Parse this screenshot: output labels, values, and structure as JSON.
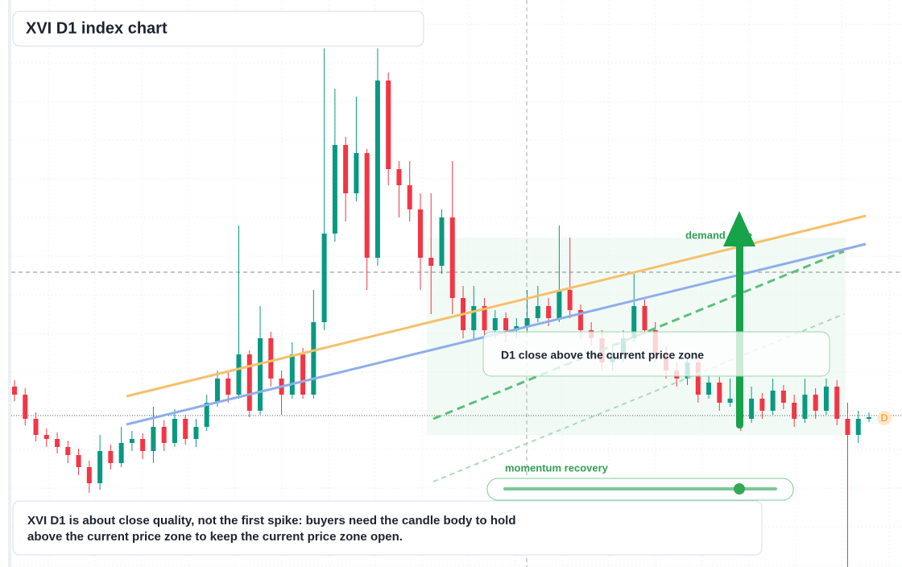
{
  "chart_data": {
    "type": "candlestick",
    "title": "XVI D1 index chart",
    "ylim": [
      0,
      704
    ],
    "up_color": "#089981",
    "down_color": "#f23645",
    "candles": [
      [
        224,
        232,
        206,
        214
      ],
      [
        214,
        222,
        176,
        184
      ],
      [
        184,
        192,
        156,
        164
      ],
      [
        164,
        172,
        149,
        159
      ],
      [
        159,
        167,
        141,
        149
      ],
      [
        149,
        157,
        129,
        139
      ],
      [
        139,
        147,
        114,
        124
      ],
      [
        124,
        132,
        92,
        104
      ],
      [
        104,
        164,
        96,
        144
      ],
      [
        144,
        152,
        121,
        129
      ],
      [
        129,
        174,
        124,
        154
      ],
      [
        154,
        169,
        144,
        159
      ],
      [
        159,
        166,
        134,
        144
      ],
      [
        144,
        199,
        129,
        174
      ],
      [
        174,
        182,
        144,
        154
      ],
      [
        154,
        196,
        149,
        184
      ],
      [
        184,
        189,
        152,
        159
      ],
      [
        159,
        184,
        149,
        174
      ],
      [
        174,
        214,
        169,
        204
      ],
      [
        204,
        244,
        199,
        234
      ],
      [
        234,
        242,
        204,
        214
      ],
      [
        214,
        424,
        209,
        264
      ],
      [
        264,
        269,
        186,
        194
      ],
      [
        194,
        324,
        189,
        284
      ],
      [
        284,
        292,
        224,
        234
      ],
      [
        234,
        244,
        189,
        214
      ],
      [
        214,
        279,
        209,
        264
      ],
      [
        264,
        272,
        209,
        214
      ],
      [
        214,
        344,
        209,
        304
      ],
      [
        304,
        644,
        294,
        414
      ],
      [
        414,
        594,
        404,
        524
      ],
      [
        524,
        534,
        429,
        464
      ],
      [
        464,
        584,
        454,
        514
      ],
      [
        514,
        519,
        344,
        384
      ],
      [
        384,
        644,
        374,
        604
      ],
      [
        604,
        614,
        474,
        494
      ],
      [
        494,
        504,
        434,
        474
      ],
      [
        474,
        504,
        429,
        444
      ],
      [
        444,
        464,
        344,
        384
      ],
      [
        384,
        464,
        314,
        374
      ],
      [
        374,
        444,
        364,
        434
      ],
      [
        434,
        504,
        314,
        334
      ],
      [
        334,
        349,
        284,
        294
      ],
      [
        294,
        349,
        284,
        324
      ],
      [
        324,
        334,
        284,
        294
      ],
      [
        294,
        319,
        284,
        309
      ],
      [
        309,
        316,
        279,
        294
      ],
      [
        294,
        309,
        284,
        299
      ],
      [
        299,
        344,
        289,
        309
      ],
      [
        309,
        349,
        304,
        324
      ],
      [
        324,
        334,
        299,
        309
      ],
      [
        309,
        424,
        304,
        344
      ],
      [
        344,
        409,
        309,
        319
      ],
      [
        319,
        326,
        284,
        294
      ],
      [
        294,
        304,
        274,
        284
      ],
      [
        284,
        294,
        244,
        254
      ],
      [
        254,
        274,
        244,
        264
      ],
      [
        264,
        294,
        254,
        284
      ],
      [
        284,
        364,
        279,
        324
      ],
      [
        324,
        332,
        289,
        294
      ],
      [
        294,
        304,
        254,
        264
      ],
      [
        264,
        274,
        234,
        244
      ],
      [
        244,
        254,
        224,
        234
      ],
      [
        234,
        264,
        226,
        254
      ],
      [
        254,
        259,
        204,
        214
      ],
      [
        214,
        239,
        209,
        229
      ],
      [
        229,
        236,
        194,
        204
      ],
      [
        204,
        234,
        199,
        209
      ],
      [
        209,
        216,
        169,
        184
      ],
      [
        184,
        224,
        179,
        209
      ],
      [
        209,
        216,
        184,
        194
      ],
      [
        194,
        234,
        189,
        219
      ],
      [
        219,
        226,
        196,
        204
      ],
      [
        204,
        214,
        174,
        184
      ],
      [
        184,
        234,
        179,
        214
      ],
      [
        214,
        222,
        184,
        194
      ],
      [
        194,
        234,
        189,
        224
      ],
      [
        224,
        232,
        176,
        184
      ],
      [
        184,
        204,
        0,
        164
      ],
      [
        164,
        194,
        154,
        184
      ],
      [
        184,
        192,
        180,
        186
      ]
    ],
    "annotations": {
      "zone_label": "demand zone",
      "callout": "D1 close above the current price zone",
      "slider_label": "momentum recovery",
      "marker": "D",
      "note": [
        "XVI D1 is about close quality, not the first spike: buyers need the candle body to hold",
        "above the current price zone to keep the current price zone open."
      ]
    }
  }
}
